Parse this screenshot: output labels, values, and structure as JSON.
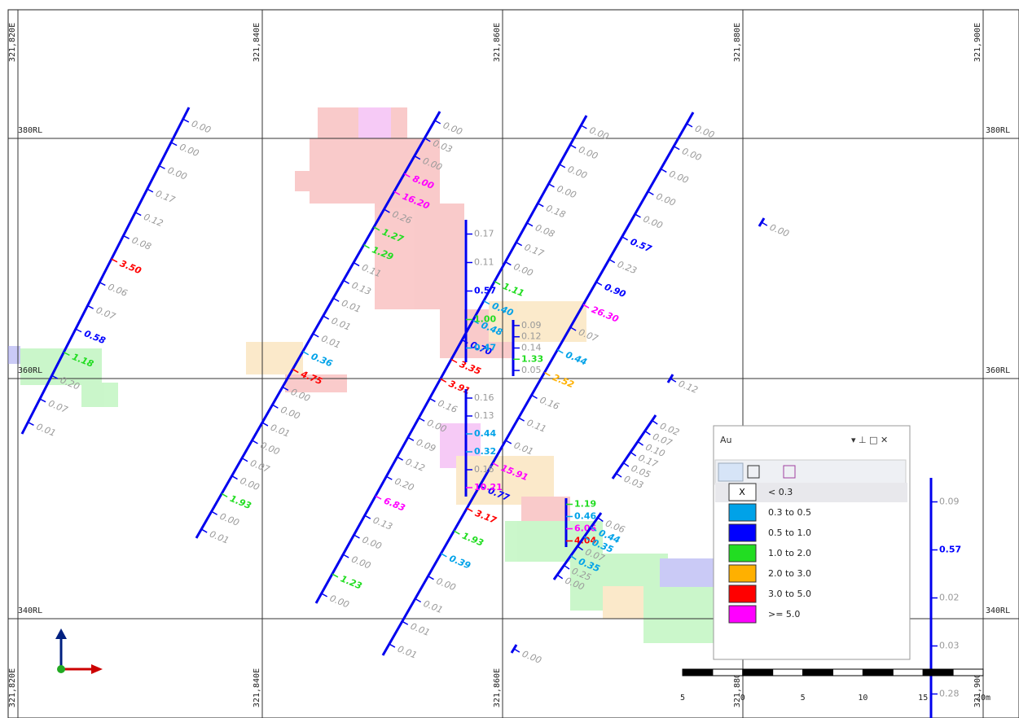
{
  "eastings": [
    "321,820E",
    "321,840E",
    "321,860E",
    "321,880E",
    "321,900E"
  ],
  "rls": [
    "380RL",
    "360RL",
    "340RL"
  ],
  "holes": [
    {
      "assays": [
        "0.00",
        "0.00",
        "0.00",
        "0.17",
        "0.12",
        "0.08",
        "3.50",
        "0.06",
        "0.07",
        "0.58",
        "1.18",
        "0.20",
        "0.07",
        "0.01"
      ]
    },
    {
      "assays": [
        "0.00",
        "0.03",
        "0.00",
        "8.00",
        "16.20",
        "0.26",
        "1.27",
        "1.29",
        "0.11",
        "0.13",
        "0.01",
        "0.01",
        "0.01",
        "0.36",
        "4.75",
        "0.00",
        "0.00",
        "0.01",
        "0.00",
        "0.07",
        "0.00",
        "1.93",
        "0.00",
        "0.01"
      ]
    },
    {
      "assays": [
        "0.00",
        "0.00",
        "0.00",
        "0.00",
        "0.18",
        "0.08",
        "0.17",
        "0.00",
        "1.11",
        "0.40",
        "0.48",
        "0.70",
        "3.35",
        "3.91",
        "0.16",
        "0.00",
        "0.09",
        "0.12",
        "0.20",
        "6.83",
        "0.13",
        "0.00",
        "0.00",
        "1.23",
        "0.00"
      ]
    },
    {
      "assays": [
        "0.00",
        "0.00",
        "0.00",
        "0.00",
        "0.00",
        "0.57",
        "0.23",
        "0.90",
        "26.30",
        "0.07",
        "0.44",
        "2.52",
        "0.16",
        "0.11",
        "0.01",
        "15.91",
        "0.77",
        "3.17",
        "1.93",
        "0.39",
        "0.00",
        "0.01",
        "0.01",
        "0.01"
      ]
    },
    {
      "assays": [
        "0.17",
        "0.11",
        "0.57",
        "1.00",
        "0.47"
      ]
    },
    {
      "assays": [
        "0.16",
        "0.13",
        "0.44",
        "0.32",
        "0.16",
        "10.21"
      ]
    },
    {
      "assays": [
        "0.09",
        "0.12",
        "0.14",
        "1.33",
        "0.05"
      ]
    },
    {
      "assays": [
        "1.19",
        "0.46",
        "6.06",
        "4.04"
      ]
    },
    {
      "assays": [
        "0.02",
        "0.07",
        "0.10",
        "0.17",
        "0.05",
        "0.03"
      ]
    },
    {
      "assays": [
        "0.06",
        "0.44",
        "0.35",
        "0.07",
        "0.35",
        "0.25",
        "0.00"
      ]
    },
    {
      "assays": [
        "0.00"
      ]
    },
    {
      "assays": [
        "0.12"
      ]
    },
    {
      "assays": [
        "0.00"
      ]
    },
    {
      "assays": [
        "0.09",
        "0.57",
        "0.02",
        "0.03",
        "0.28"
      ]
    }
  ],
  "legend": {
    "title": "Au",
    "none_symbol": "X",
    "items": [
      {
        "label": "< 0.3"
      },
      {
        "label": "0.3 to 0.5",
        "color": "#00a2e8",
        "min": 0.3
      },
      {
        "label": "0.5 to 1.0",
        "color": "#0000ff",
        "min": 0.5
      },
      {
        "label": "1.0 to 2.0",
        "color": "#22dd22",
        "min": 1.0
      },
      {
        "label": "2.0 to 3.0",
        "color": "#ffb000",
        "min": 2.0
      },
      {
        "label": "3.0 to 5.0",
        "color": "#ff0000",
        "min": 3.0
      },
      {
        "label": ">= 5.0",
        "color": "#ff00ff",
        "min": 5.0
      }
    ]
  },
  "scale": {
    "labels": [
      "5",
      "0",
      "5",
      "10",
      "15",
      "20m"
    ]
  }
}
